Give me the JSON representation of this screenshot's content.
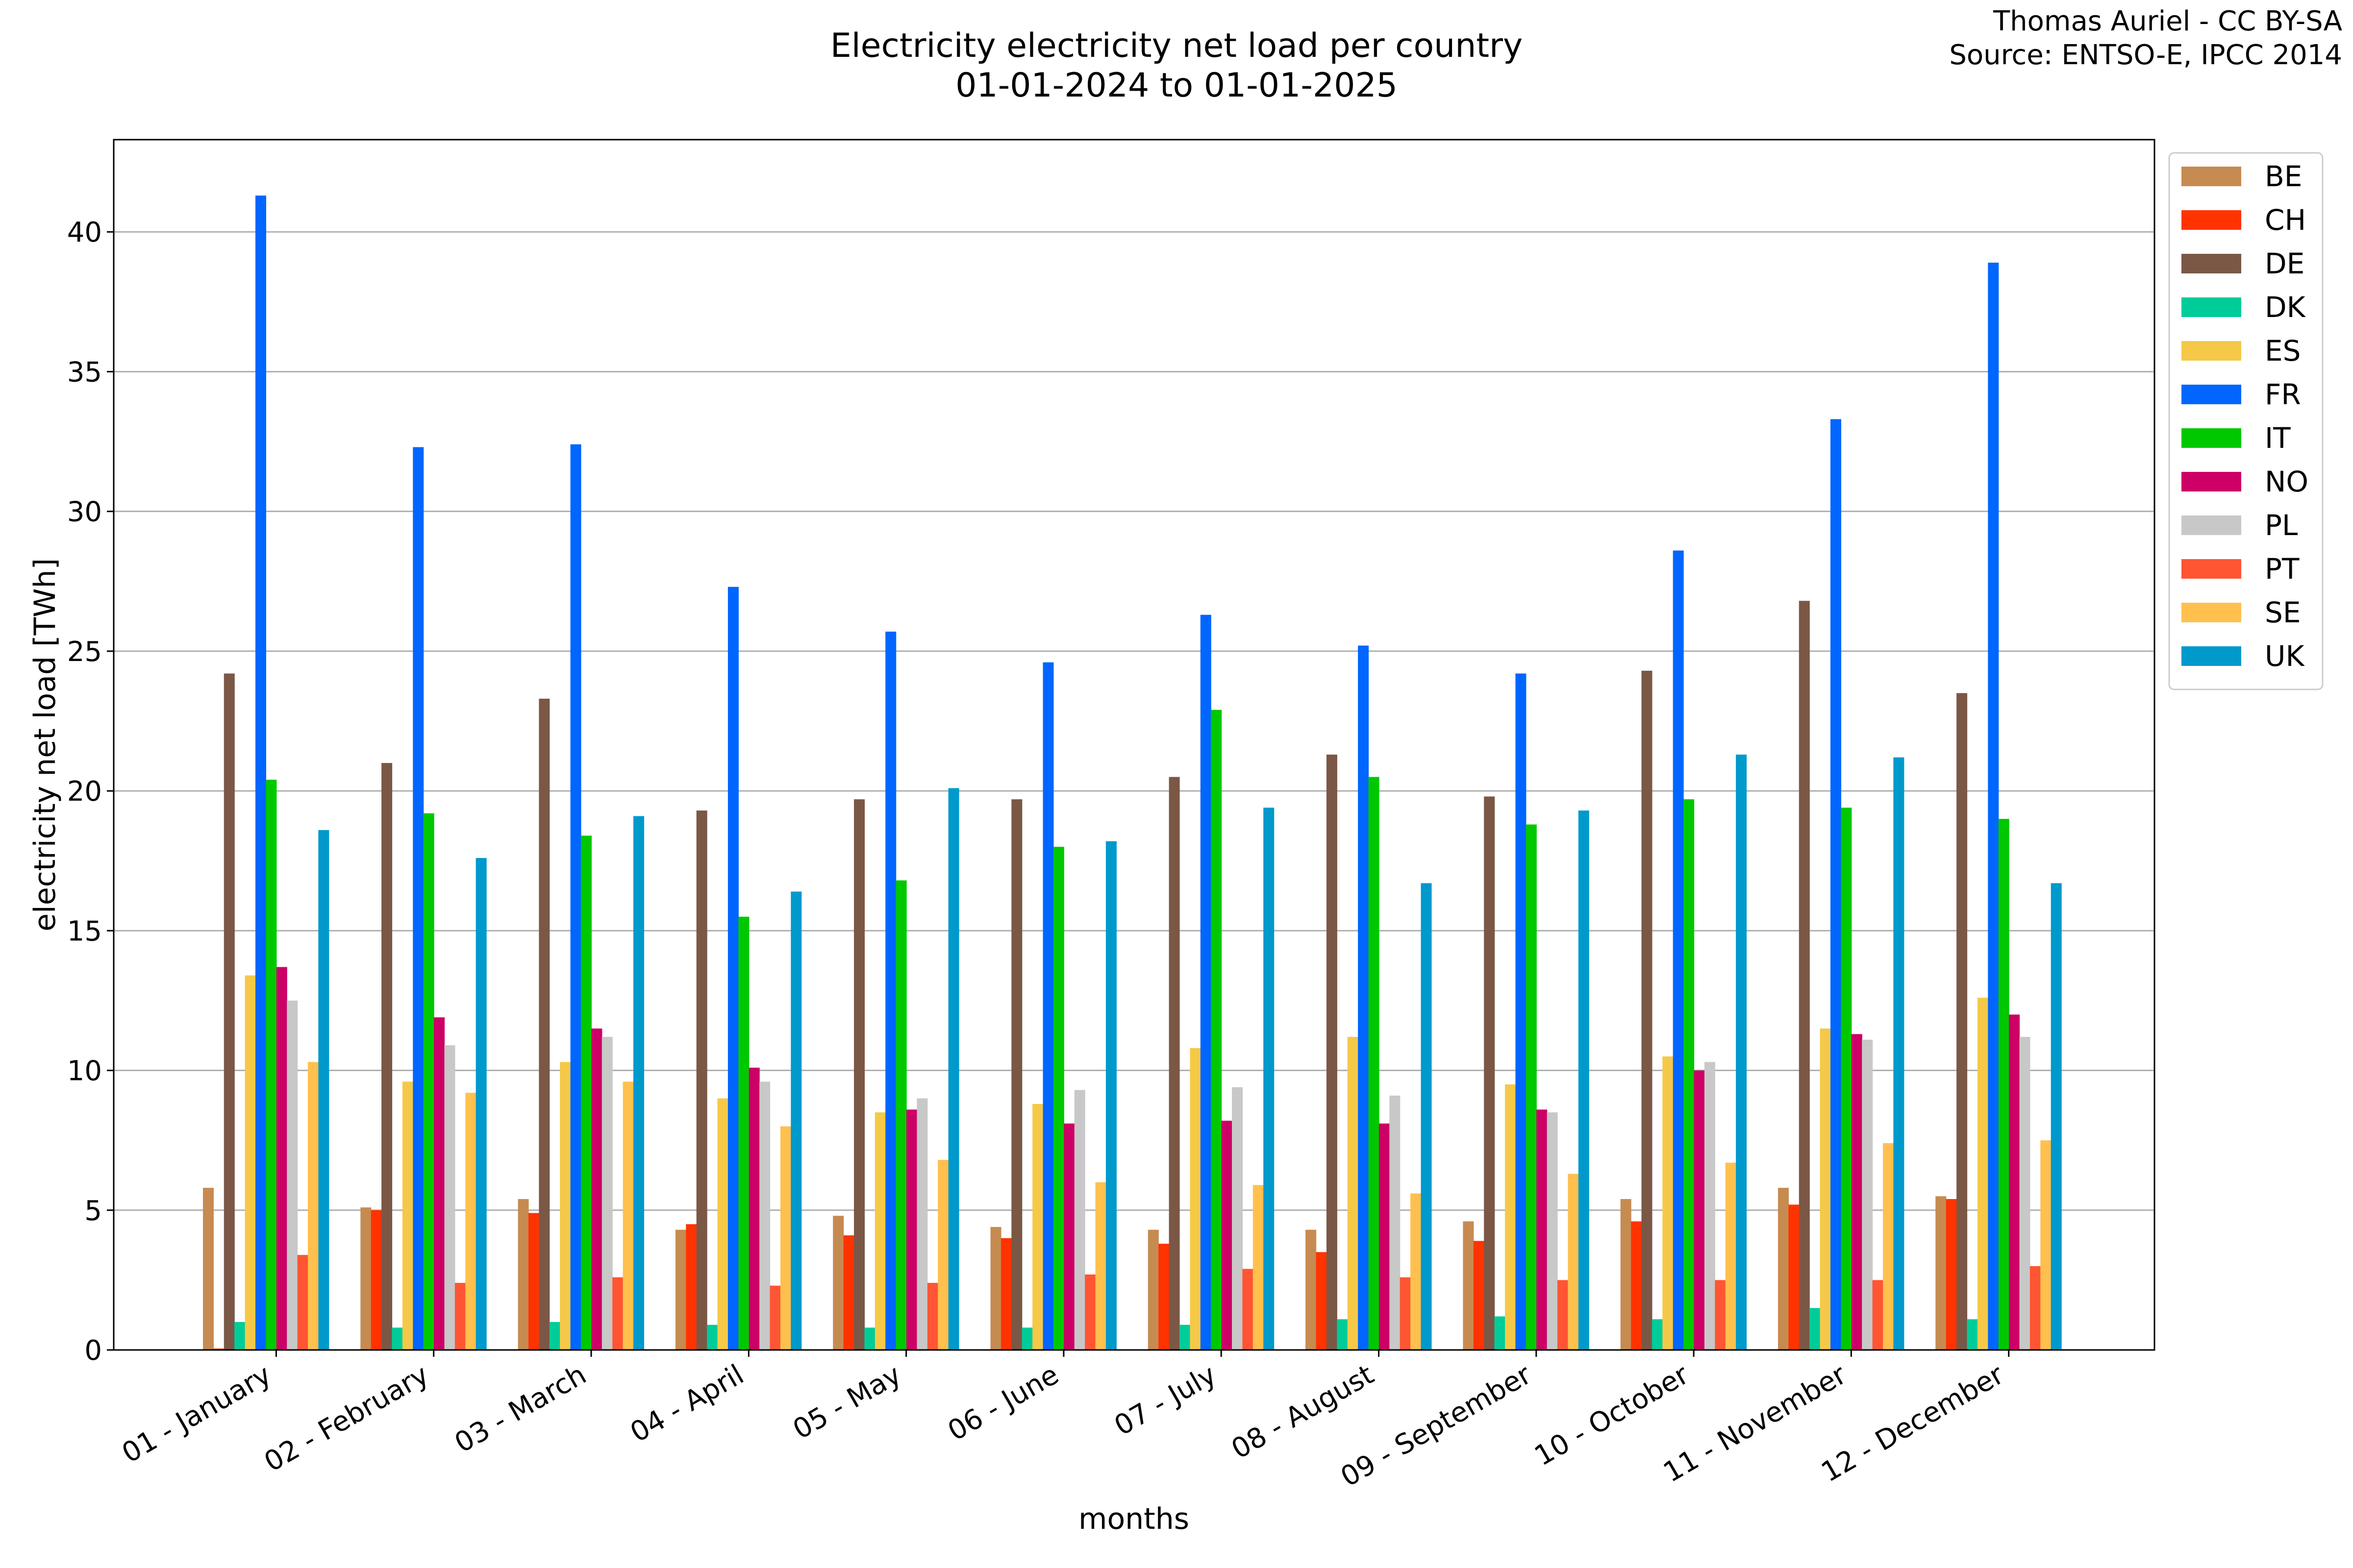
{
  "title_line1": "Electricity electricity net load per country",
  "title_line2": "01-01-2024 to 01-01-2025",
  "credit_line1": "Thomas Auriel - CC BY-SA",
  "credit_line2": "Source: ENTSO-E, IPCC 2014",
  "chart_data": {
    "type": "bar",
    "title": "Electricity electricity net load per country\n01-01-2024 to 01-01-2025",
    "xlabel": "months",
    "ylabel": "electricity net load [TWh]",
    "ylim": [
      0,
      43.3
    ],
    "yticks": [
      0,
      5,
      10,
      15,
      20,
      25,
      30,
      35,
      40
    ],
    "grid": true,
    "legend_position": "right",
    "categories": [
      "01 - January",
      "02 - February",
      "03 - March",
      "04 - April",
      "05 - May",
      "06 - June",
      "07 - July",
      "08 - August",
      "09 - September",
      "10 - October",
      "11 - November",
      "12 - December"
    ],
    "series": [
      {
        "name": "BE",
        "color": "#c68b51",
        "values": [
          5.8,
          5.1,
          5.4,
          4.3,
          4.8,
          4.4,
          4.3,
          4.3,
          4.6,
          5.4,
          5.8,
          5.5
        ]
      },
      {
        "name": "CH",
        "color": "#ff3300",
        "values": [
          0.05,
          5.0,
          4.9,
          4.5,
          4.1,
          4.0,
          3.8,
          3.5,
          3.9,
          4.6,
          5.2,
          5.4
        ]
      },
      {
        "name": "DE",
        "color": "#7b5746",
        "values": [
          24.2,
          21.0,
          23.3,
          19.3,
          19.7,
          19.7,
          20.5,
          21.3,
          19.8,
          24.3,
          26.8,
          23.5
        ]
      },
      {
        "name": "DK",
        "color": "#00cc99",
        "values": [
          1.0,
          0.8,
          1.0,
          0.9,
          0.8,
          0.8,
          0.9,
          1.1,
          1.2,
          1.1,
          1.5,
          1.1
        ]
      },
      {
        "name": "ES",
        "color": "#f5c947",
        "values": [
          13.4,
          9.6,
          10.3,
          9.0,
          8.5,
          8.8,
          10.8,
          11.2,
          9.5,
          10.5,
          11.5,
          12.6
        ]
      },
      {
        "name": "FR",
        "color": "#0066ff",
        "values": [
          41.3,
          32.3,
          32.4,
          27.3,
          25.7,
          24.6,
          26.3,
          25.2,
          24.2,
          28.6,
          33.3,
          38.9
        ]
      },
      {
        "name": "IT",
        "color": "#00c800",
        "values": [
          20.4,
          19.2,
          18.4,
          15.5,
          16.8,
          18.0,
          22.9,
          20.5,
          18.8,
          19.7,
          19.4,
          19.0
        ]
      },
      {
        "name": "NO",
        "color": "#cc0066",
        "values": [
          13.7,
          11.9,
          11.5,
          10.1,
          8.6,
          8.1,
          8.2,
          8.1,
          8.6,
          10.0,
          11.3,
          12.0
        ]
      },
      {
        "name": "PL",
        "color": "#c8c8c8",
        "values": [
          12.5,
          10.9,
          11.2,
          9.6,
          9.0,
          9.3,
          9.4,
          9.1,
          8.5,
          10.3,
          11.1,
          11.2
        ]
      },
      {
        "name": "PT",
        "color": "#ff5533",
        "values": [
          3.4,
          2.4,
          2.6,
          2.3,
          2.4,
          2.7,
          2.9,
          2.6,
          2.5,
          2.5,
          2.5,
          3.0
        ]
      },
      {
        "name": "SE",
        "color": "#ffc04d",
        "values": [
          10.3,
          9.2,
          9.6,
          8.0,
          6.8,
          6.0,
          5.9,
          5.6,
          6.3,
          6.7,
          7.4,
          7.5
        ]
      },
      {
        "name": "UK",
        "color": "#0099cc",
        "values": [
          18.6,
          17.6,
          19.1,
          16.4,
          20.1,
          18.2,
          19.4,
          16.7,
          19.3,
          21.3,
          21.2,
          16.7
        ]
      }
    ]
  }
}
